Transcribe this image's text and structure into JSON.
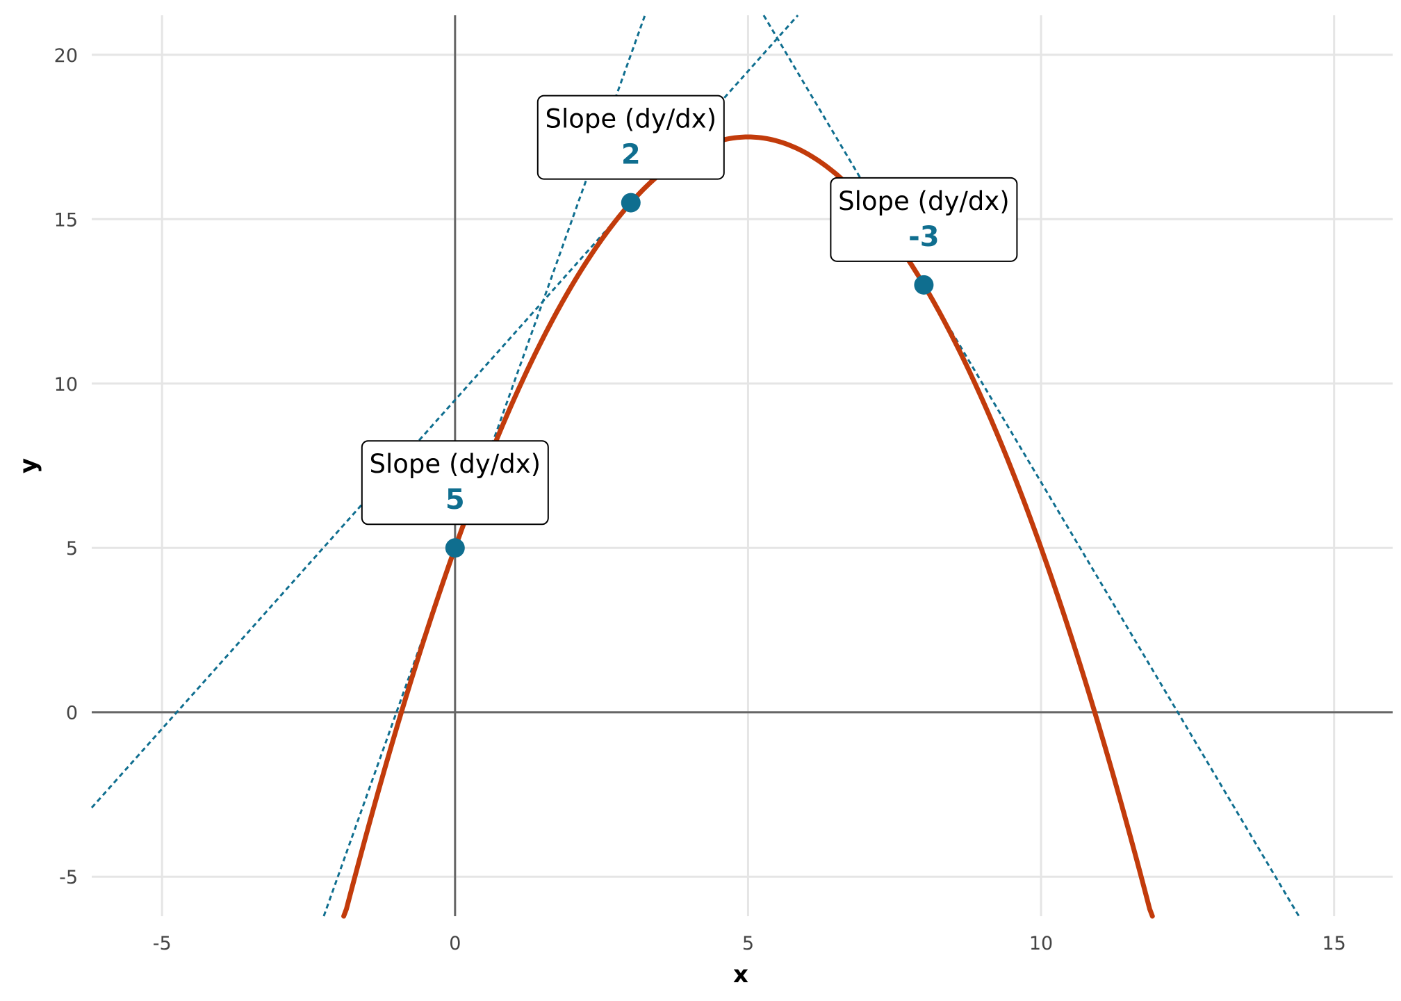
{
  "chart_data": {
    "type": "line",
    "title": "",
    "xlabel": "x",
    "ylabel": "y",
    "xlim": [
      -6.2,
      16.0
    ],
    "ylim": [
      -6.2,
      21.2
    ],
    "x_ticks": [
      -5,
      0,
      5,
      10,
      15
    ],
    "y_ticks": [
      -5,
      0,
      5,
      10,
      15,
      20
    ],
    "x_tick_labels": [
      "-5",
      "0",
      "5",
      "10",
      "15"
    ],
    "y_tick_labels": [
      "-5",
      "0",
      "5",
      "10",
      "15",
      "20"
    ],
    "grid": true,
    "legend": "none",
    "curve": {
      "equation": "y = -0.5x^2 + 5x + 5",
      "x": [
        -1.9,
        -1,
        0,
        1,
        2,
        3,
        4,
        5,
        6,
        7,
        8,
        9,
        10,
        11,
        11.9
      ],
      "y": [
        -6.3,
        -0.5,
        5,
        9.5,
        13,
        15.5,
        17,
        17.5,
        17,
        15.5,
        13,
        9.5,
        5,
        -0.5,
        -6.3
      ],
      "color": "#c23b0b"
    },
    "tangents": [
      {
        "point": [
          0,
          5
        ],
        "slope": 5,
        "label_title": "Slope (dy/dx)",
        "label_value": "5"
      },
      {
        "point": [
          3,
          15.5
        ],
        "slope": 2,
        "label_title": "Slope (dy/dx)",
        "label_value": "2"
      },
      {
        "point": [
          8,
          13
        ],
        "slope": -3,
        "label_title": "Slope (dy/dx)",
        "label_value": "-3"
      }
    ],
    "colors": {
      "curve": "#c23b0b",
      "tangent": "#0f6e8f",
      "grid": "#e5e5e5",
      "zero_axis": "#666666",
      "tick_text": "#444444"
    }
  }
}
